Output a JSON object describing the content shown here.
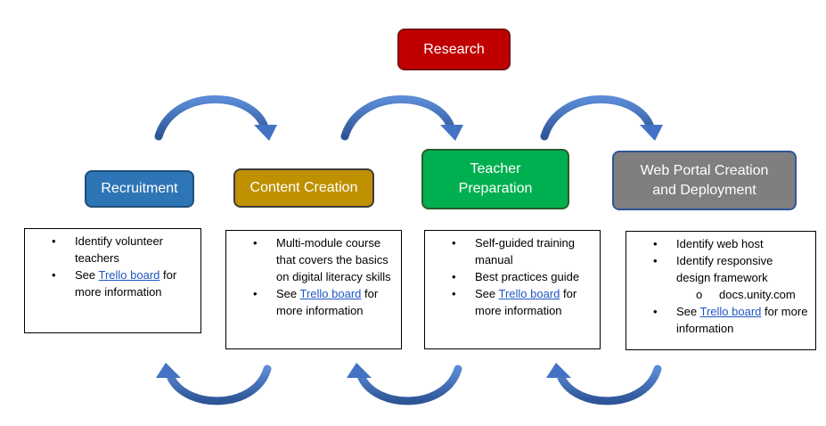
{
  "research": {
    "label": "Research"
  },
  "stages": [
    {
      "label_lines": [
        "Recruitment"
      ]
    },
    {
      "label_lines": [
        "Content Creation"
      ]
    },
    {
      "label_lines": [
        "Teacher",
        "Preparation"
      ]
    },
    {
      "label_lines": [
        "Web Portal Creation",
        "and Deployment"
      ]
    }
  ],
  "boxes": [
    {
      "items": [
        {
          "text": "Identify volunteer teachers"
        },
        {
          "pre": "See ",
          "link": "Trello board",
          "post": " for more information"
        }
      ]
    },
    {
      "items": [
        {
          "text": "Multi-module course that covers the basics on digital literacy skills"
        },
        {
          "pre": "See ",
          "link": "Trello board",
          "post": " for more information"
        }
      ]
    },
    {
      "items": [
        {
          "text": "Self-guided training manual"
        },
        {
          "text": "Best practices guide"
        },
        {
          "pre": "See ",
          "link": "Trello board",
          "post": " for more information"
        }
      ]
    },
    {
      "items": [
        {
          "text": "Identify web host"
        },
        {
          "text": "Identify responsive design framework"
        },
        {
          "sub": "docs.unity.com"
        },
        {
          "pre": "See ",
          "link": "Trello board",
          "post": " for more information"
        }
      ]
    }
  ],
  "colors": {
    "research": "#c00000",
    "recruitment": "#2e75b6",
    "content_creation": "#bf9000",
    "teacher_preparation": "#00b050",
    "web_portal": "#7f7f7f",
    "arrow": "#4472c4"
  },
  "icons": {
    "bullet": "•",
    "sub_bullet": "o"
  }
}
